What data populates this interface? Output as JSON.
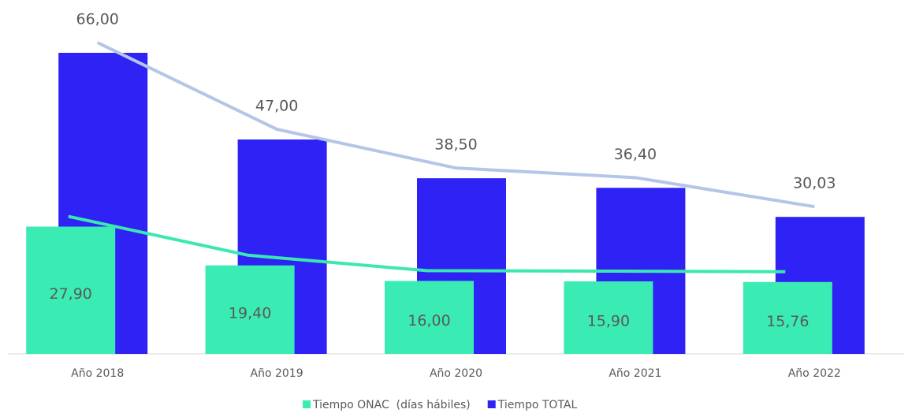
{
  "chart_data": {
    "type": "bar",
    "categories": [
      "Año 2018",
      "Año 2019",
      "Año 2020",
      "Año 2021",
      "Año 2022"
    ],
    "series": [
      {
        "name": "Tiempo ONAC  (días hábiles)",
        "color": "#3bebb4",
        "line_color": "#3be8b0",
        "values": [
          27.9,
          19.4,
          16.0,
          15.9,
          15.76
        ],
        "value_labels": [
          "27,90",
          "19,40",
          "16,00",
          "15,90",
          "15,76"
        ]
      },
      {
        "name": "Tiempo TOTAL",
        "color": "#2e22f5",
        "line_color": "#b4c6e7",
        "values": [
          66.0,
          47.0,
          38.5,
          36.4,
          30.03
        ],
        "value_labels": [
          "66,00",
          "47,00",
          "38,50",
          "36,40",
          "30,03"
        ]
      }
    ],
    "trendlines": true
  }
}
